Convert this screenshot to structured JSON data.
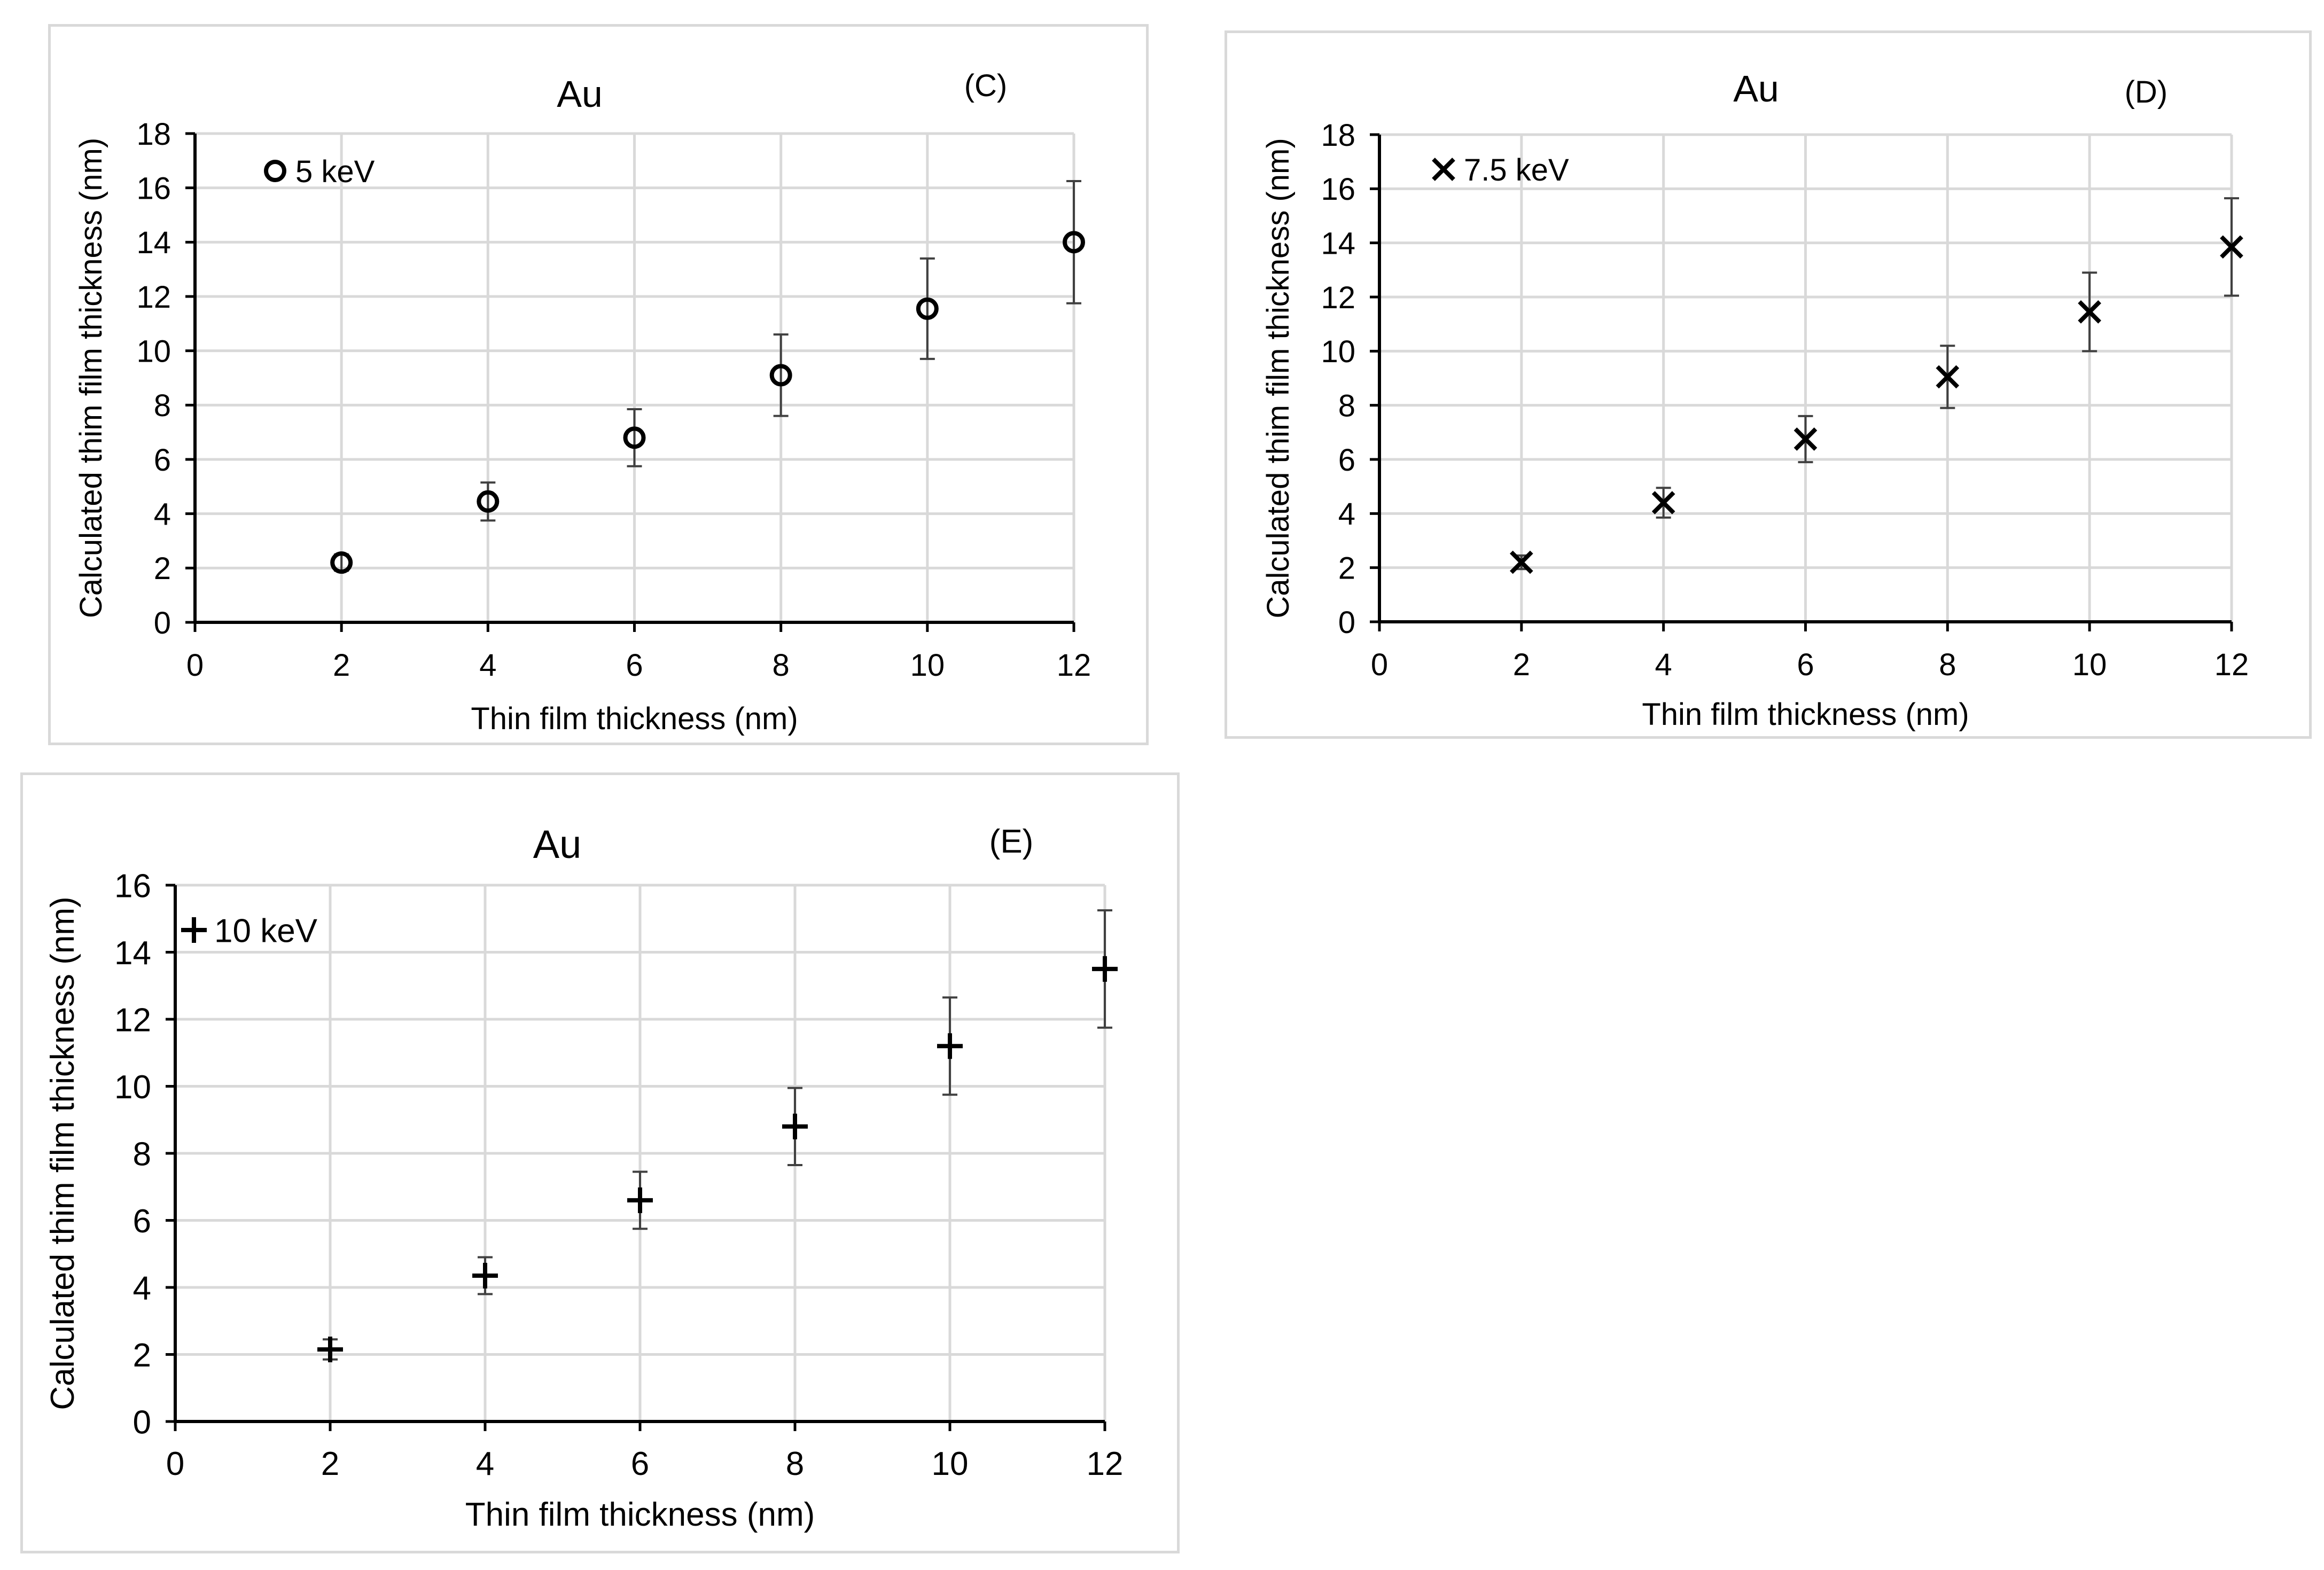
{
  "chart_data": [
    {
      "panel_id": "c",
      "type": "scatter",
      "title": "Au",
      "panel_label": "(C)",
      "xlabel": "Thin film thickness (nm)",
      "ylabel": "Calculated thim film thickness (nm)",
      "xlim": [
        0,
        12
      ],
      "ylim": [
        0,
        18
      ],
      "xticks": [
        0,
        2,
        4,
        6,
        8,
        10,
        12
      ],
      "yticks": [
        0,
        2,
        4,
        6,
        8,
        10,
        12,
        14,
        16,
        18
      ],
      "grid": true,
      "legend_position": "top-left",
      "series": [
        {
          "name": "5 keV",
          "marker": "circle",
          "x": [
            2,
            4,
            6,
            8,
            10,
            12
          ],
          "y": [
            2.2,
            4.45,
            6.8,
            9.1,
            11.55,
            14.0
          ],
          "error": [
            0.3,
            0.7,
            1.05,
            1.5,
            1.85,
            2.25
          ]
        }
      ]
    },
    {
      "panel_id": "d",
      "type": "scatter",
      "title": "Au",
      "panel_label": "(D)",
      "xlabel": "Thin film thickness (nm)",
      "ylabel": "Calculated thim film thickness (nm)",
      "xlim": [
        0,
        12
      ],
      "ylim": [
        0,
        18
      ],
      "xticks": [
        0,
        2,
        4,
        6,
        8,
        10,
        12
      ],
      "yticks": [
        0,
        2,
        4,
        6,
        8,
        10,
        12,
        14,
        16,
        18
      ],
      "grid": true,
      "legend_position": "top-left",
      "series": [
        {
          "name": "7.5 keV",
          "marker": "x",
          "x": [
            2,
            4,
            6,
            8,
            10,
            12
          ],
          "y": [
            2.2,
            4.4,
            6.75,
            9.05,
            11.45,
            13.85
          ],
          "error": [
            0.25,
            0.55,
            0.85,
            1.15,
            1.45,
            1.8
          ]
        }
      ]
    },
    {
      "panel_id": "e",
      "type": "scatter",
      "title": "Au",
      "panel_label": "(E)",
      "xlabel": "Thin film thickness (nm)",
      "ylabel": "Calculated thim film thickness (nm)",
      "xlim": [
        0,
        12
      ],
      "ylim": [
        0,
        16
      ],
      "xticks": [
        0,
        2,
        4,
        6,
        8,
        10,
        12
      ],
      "yticks": [
        0,
        2,
        4,
        6,
        8,
        10,
        12,
        14,
        16
      ],
      "grid": true,
      "legend_position": "top-left",
      "series": [
        {
          "name": "10 keV",
          "marker": "plus",
          "x": [
            2,
            4,
            6,
            8,
            10,
            12
          ],
          "y": [
            2.15,
            4.35,
            6.6,
            8.8,
            11.2,
            13.5
          ],
          "error": [
            0.3,
            0.55,
            0.85,
            1.15,
            1.45,
            1.75
          ]
        }
      ]
    }
  ]
}
